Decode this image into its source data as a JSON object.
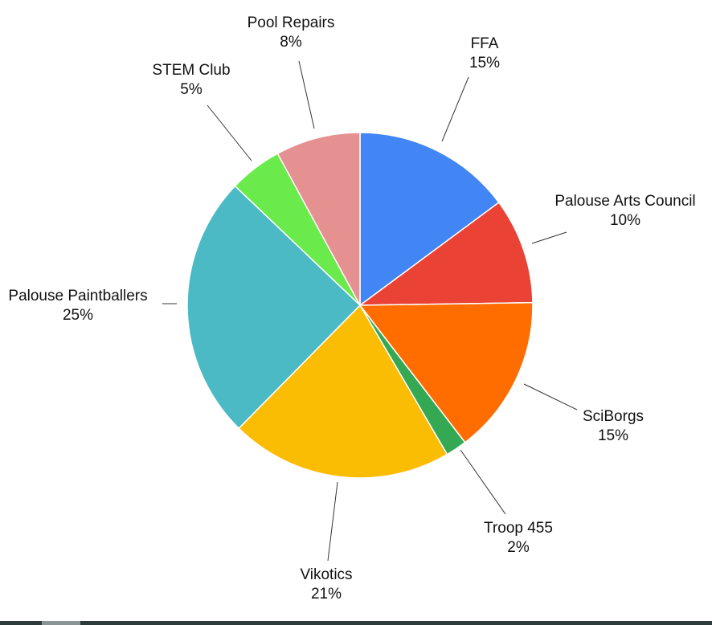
{
  "chart_data": {
    "type": "pie",
    "title": "",
    "slices": [
      {
        "label": "FFA",
        "value": 15,
        "percent_label": "15%",
        "color": "#4285F4"
      },
      {
        "label": "Palouse Arts Council",
        "value": 10,
        "percent_label": "10%",
        "color": "#EA4335"
      },
      {
        "label": "SciBorgs",
        "value": 15,
        "percent_label": "15%",
        "color": "#FF6D01"
      },
      {
        "label": "Troop 455",
        "value": 2,
        "percent_label": "2%",
        "color": "#34A853"
      },
      {
        "label": "Vikotics",
        "value": 21,
        "percent_label": "21%",
        "color": "#FBBC04"
      },
      {
        "label": "Palouse Paintballers",
        "value": 25,
        "percent_label": "25%",
        "color": "#4BBAC4"
      },
      {
        "label": "STEM Club",
        "value": 5,
        "percent_label": "5%",
        "color": "#6AEA4B"
      },
      {
        "label": "Pool Repairs",
        "value": 8,
        "percent_label": "8%",
        "color": "#E69191"
      }
    ],
    "start_angle_deg": 0,
    "direction": "clockwise",
    "legend": "none",
    "labels": "outside with leader lines"
  }
}
